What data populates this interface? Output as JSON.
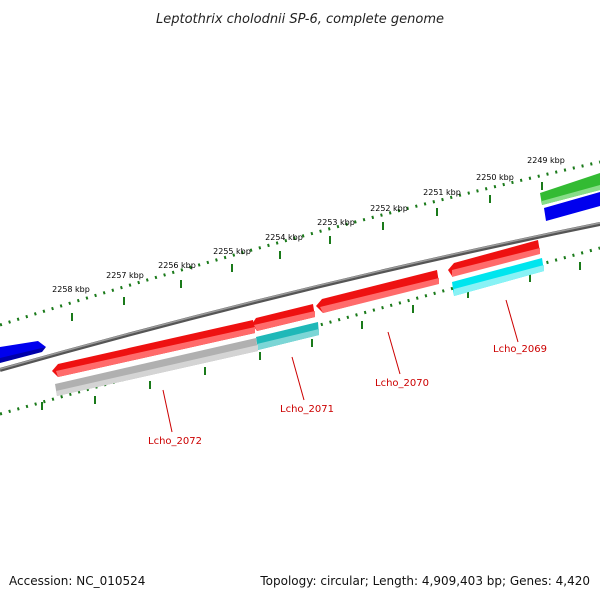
{
  "title": "Leptothrix cholodnii SP-6, complete genome",
  "footer": {
    "accession": "Accession: NC_010524",
    "summary": "Topology: circular; Length: 4,909,403 bp; Genes: 4,420"
  },
  "scale": {
    "unit": "kbp",
    "labels": [
      "2249 kbp",
      "2250 kbp",
      "2251 kbp",
      "2252 kbp",
      "2253 kbp",
      "2254 kbp",
      "2255 kbp",
      "2256 kbp",
      "2257 kbp",
      "2258 kbp"
    ]
  },
  "genes": [
    {
      "label": "Lcho_2069",
      "color": "#ee1111"
    },
    {
      "label": "Lcho_2070",
      "color": "#ee1111"
    },
    {
      "label": "Lcho_2071",
      "color": "#ee1111"
    },
    {
      "label": "Lcho_2072",
      "color": "#ee1111"
    }
  ],
  "colors": {
    "backbone": "#7a7a7a",
    "cds": "#ee1111",
    "match_cyan": "#00e5ee",
    "match_teal": "#1fb8b8",
    "match_gray": "#b8b8b8",
    "blue_feature": "#0000ee",
    "green_feature": "#33bb33",
    "tick": "#1a7a1a"
  }
}
